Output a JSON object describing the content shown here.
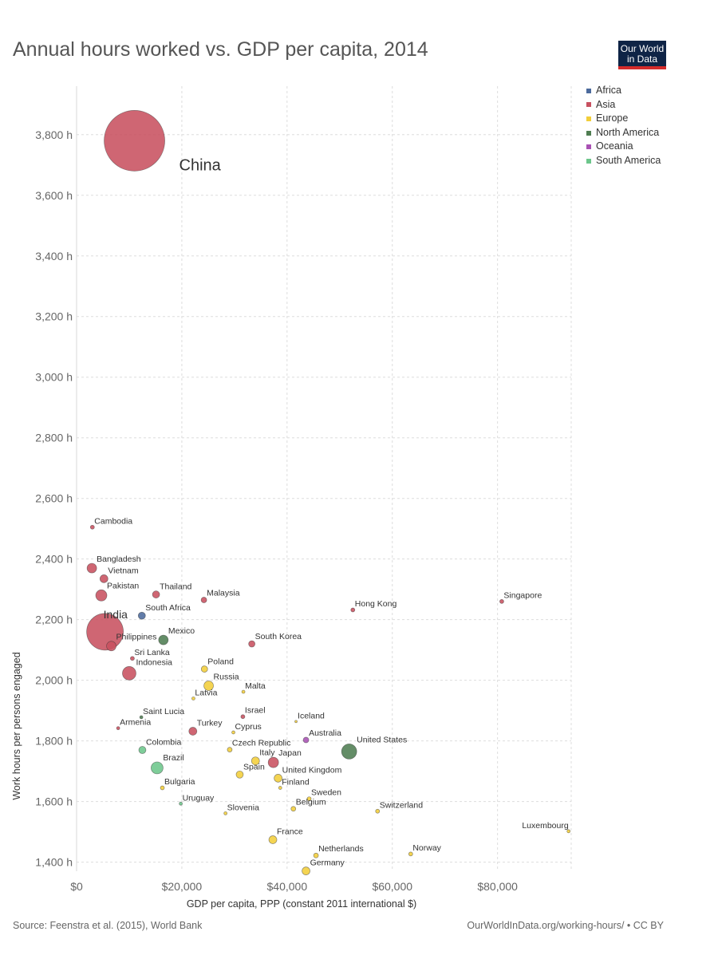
{
  "title": "Annual hours worked vs. GDP per capita, 2014",
  "logo": {
    "line1": "Our World",
    "line2": "in Data"
  },
  "source": "Source: Feenstra et al. (2015), World Bank",
  "url": "OurWorldInData.org/working-hours/ • CC BY",
  "legend": [
    {
      "label": "Africa",
      "color": "#4c6a9c"
    },
    {
      "label": "Asia",
      "color": "#c85160"
    },
    {
      "label": "Europe",
      "color": "#f2ce3a"
    },
    {
      "label": "North America",
      "color": "#4f7d52"
    },
    {
      "label": "Oceania",
      "color": "#a952b4"
    },
    {
      "label": "South America",
      "color": "#6cc68b"
    }
  ],
  "chart_data": {
    "type": "scatter",
    "title": "Annual hours worked vs. GDP per capita, 2014",
    "xlabel": "GDP per capita, PPP (constant 2011 international $)",
    "ylabel": "Work hours per persons engaged",
    "xlim": [
      0,
      94000
    ],
    "ylim": [
      1370,
      3960
    ],
    "xticks": [
      0,
      20000,
      40000,
      60000,
      80000
    ],
    "xtick_labels": [
      "$0",
      "$20,000",
      "$40,000",
      "$60,000",
      "$80,000"
    ],
    "yticks": [
      1400,
      1600,
      1800,
      2000,
      2200,
      2400,
      2600,
      2800,
      3000,
      3200,
      3400,
      3600,
      3800
    ],
    "ytick_labels": [
      "1,400 h",
      "1,600 h",
      "1,800 h",
      "2,000 h",
      "2,200 h",
      "2,400 h",
      "2,600 h",
      "2,800 h",
      "3,000 h",
      "3,200 h",
      "3,400 h",
      "3,600 h",
      "3,800 h"
    ],
    "grid": true,
    "legend_position": "top-right",
    "point_size": "population",
    "points": [
      {
        "label": "China",
        "x": 11000,
        "y": 3780,
        "region": "Asia",
        "r": 38
      },
      {
        "label": "Cambodia",
        "x": 3000,
        "y": 2505,
        "region": "Asia",
        "r": 2.5
      },
      {
        "label": "Bangladesh",
        "x": 2900,
        "y": 2370,
        "region": "Asia",
        "r": 6
      },
      {
        "label": "Vietnam",
        "x": 5200,
        "y": 2335,
        "region": "Asia",
        "r": 5
      },
      {
        "label": "Pakistan",
        "x": 4700,
        "y": 2280,
        "region": "Asia",
        "r": 7
      },
      {
        "label": "Thailand",
        "x": 15100,
        "y": 2283,
        "region": "Asia",
        "r": 4.5
      },
      {
        "label": "Malaysia",
        "x": 24200,
        "y": 2265,
        "region": "Asia",
        "r": 3.5
      },
      {
        "label": "Hong Kong",
        "x": 52500,
        "y": 2232,
        "region": "Asia",
        "r": 2.5
      },
      {
        "label": "Singapore",
        "x": 80800,
        "y": 2260,
        "region": "Asia",
        "r": 2.5
      },
      {
        "label": "South Africa",
        "x": 12400,
        "y": 2213,
        "region": "Africa",
        "r": 4.5
      },
      {
        "label": "India",
        "x": 5400,
        "y": 2160,
        "region": "Asia",
        "r": 23
      },
      {
        "label": "Philippines",
        "x": 6600,
        "y": 2113,
        "region": "Asia",
        "r": 6
      },
      {
        "label": "Mexico",
        "x": 16500,
        "y": 2133,
        "region": "North America",
        "r": 6
      },
      {
        "label": "South Korea",
        "x": 33300,
        "y": 2120,
        "region": "Asia",
        "r": 4
      },
      {
        "label": "Sri Lanka",
        "x": 10600,
        "y": 2072,
        "region": "Asia",
        "r": 2.5
      },
      {
        "label": "Indonesia",
        "x": 10000,
        "y": 2023,
        "region": "Asia",
        "r": 8.5
      },
      {
        "label": "Poland",
        "x": 24300,
        "y": 2037,
        "region": "Europe",
        "r": 4
      },
      {
        "label": "Russia",
        "x": 25100,
        "y": 1982,
        "region": "Europe",
        "r": 6
      },
      {
        "label": "Malta",
        "x": 31700,
        "y": 1962,
        "region": "Europe",
        "r": 2
      },
      {
        "label": "Latvia",
        "x": 22200,
        "y": 1940,
        "region": "Europe",
        "r": 2
      },
      {
        "label": "Saint Lucia",
        "x": 12300,
        "y": 1878,
        "region": "North America",
        "r": 2
      },
      {
        "label": "Israel",
        "x": 31600,
        "y": 1880,
        "region": "Asia",
        "r": 2.5
      },
      {
        "label": "Iceland",
        "x": 41700,
        "y": 1864,
        "region": "Europe",
        "r": 1.5
      },
      {
        "label": "Armenia",
        "x": 7900,
        "y": 1842,
        "region": "Asia",
        "r": 2
      },
      {
        "label": "Turkey",
        "x": 22100,
        "y": 1832,
        "region": "Asia",
        "r": 5
      },
      {
        "label": "Cyprus",
        "x": 29800,
        "y": 1828,
        "region": "Europe",
        "r": 2
      },
      {
        "label": "Australia",
        "x": 43600,
        "y": 1803,
        "region": "Oceania",
        "r": 3.5
      },
      {
        "label": "United States",
        "x": 51800,
        "y": 1765,
        "region": "North America",
        "r": 9.5
      },
      {
        "label": "Colombia",
        "x": 12500,
        "y": 1770,
        "region": "South America",
        "r": 4.5
      },
      {
        "label": "Czech Republic",
        "x": 29100,
        "y": 1771,
        "region": "Europe",
        "r": 3
      },
      {
        "label": "Italy",
        "x": 34000,
        "y": 1734,
        "region": "Europe",
        "r": 5
      },
      {
        "label": "Japan",
        "x": 37400,
        "y": 1729,
        "region": "Asia",
        "r": 6.5
      },
      {
        "label": "Brazil",
        "x": 15300,
        "y": 1711,
        "region": "South America",
        "r": 7.5
      },
      {
        "label": "Spain",
        "x": 31000,
        "y": 1689,
        "region": "Europe",
        "r": 4.5
      },
      {
        "label": "United Kingdom",
        "x": 38300,
        "y": 1677,
        "region": "Europe",
        "r": 5
      },
      {
        "label": "Finland",
        "x": 38700,
        "y": 1645,
        "region": "Europe",
        "r": 2
      },
      {
        "label": "Bulgaria",
        "x": 16300,
        "y": 1645,
        "region": "Europe",
        "r": 2.5
      },
      {
        "label": "Sweden",
        "x": 44200,
        "y": 1609,
        "region": "Europe",
        "r": 2.5
      },
      {
        "label": "Uruguay",
        "x": 19800,
        "y": 1593,
        "region": "South America",
        "r": 2
      },
      {
        "label": "Belgium",
        "x": 41200,
        "y": 1576,
        "region": "Europe",
        "r": 3
      },
      {
        "label": "Switzerland",
        "x": 57200,
        "y": 1568,
        "region": "Europe",
        "r": 2.5
      },
      {
        "label": "Slovenia",
        "x": 28300,
        "y": 1561,
        "region": "Europe",
        "r": 2
      },
      {
        "label": "Luxembourg",
        "x": 93500,
        "y": 1502,
        "region": "Europe",
        "r": 2
      },
      {
        "label": "France",
        "x": 37300,
        "y": 1474,
        "region": "Europe",
        "r": 5
      },
      {
        "label": "Netherlands",
        "x": 45500,
        "y": 1422,
        "region": "Europe",
        "r": 3
      },
      {
        "label": "Norway",
        "x": 63500,
        "y": 1427,
        "region": "Europe",
        "r": 2.5
      },
      {
        "label": "Germany",
        "x": 43600,
        "y": 1371,
        "region": "Europe",
        "r": 5
      }
    ]
  }
}
